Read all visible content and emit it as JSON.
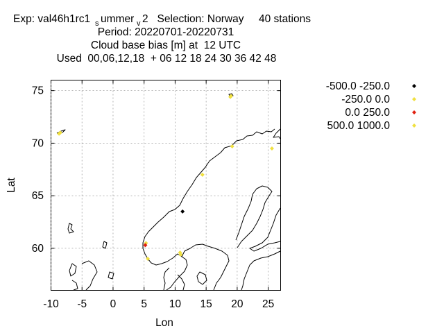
{
  "chart_data": {
    "type": "scatter",
    "title_lines": [
      "Exp: val46h1rc1",
      "ummer",
      "2   Selection: Norway     40 stations",
      "Period: 20220701-20220731",
      "Cloud base bias [m] at  12 UTC",
      "Used  00,06,12,18  + 06 12 18 24 30 36 42 48"
    ],
    "title_subscripts": [
      "s",
      "v"
    ],
    "xlabel": "Lon",
    "ylabel": "Lat",
    "xlim": [
      -10,
      27
    ],
    "ylim": [
      56,
      76
    ],
    "xticks": [
      "-10",
      "-5",
      "0",
      "5",
      "10",
      "15",
      "20",
      "25"
    ],
    "yticks": [
      "60",
      "65",
      "70",
      "75"
    ],
    "grid": true,
    "legend_position": "right",
    "series": [
      {
        "name": "-500.0 -250.0",
        "color": "#000000",
        "points": [
          [
            11.2,
            63.5
          ]
        ]
      },
      {
        "name": "-250.0 0.0",
        "color": "#f0e040",
        "points": [
          [
            -8.5,
            71.0
          ],
          [
            19.0,
            74.5
          ],
          [
            25.6,
            69.5
          ],
          [
            5.6,
            59.0
          ],
          [
            10.8,
            59.6
          ],
          [
            19.2,
            69.7
          ],
          [
            14.4,
            67.0
          ],
          [
            5.3,
            60.5
          ]
        ]
      },
      {
        "name": "0.0 250.0",
        "color": "#e02010",
        "points": [
          [
            5.2,
            60.3
          ]
        ]
      },
      {
        "name": "500.0 1000.0",
        "color": "#f0e040",
        "points": [
          [
            -8.7,
            70.9
          ],
          [
            10.9,
            59.4
          ],
          [
            18.9,
            74.4
          ]
        ]
      }
    ]
  }
}
